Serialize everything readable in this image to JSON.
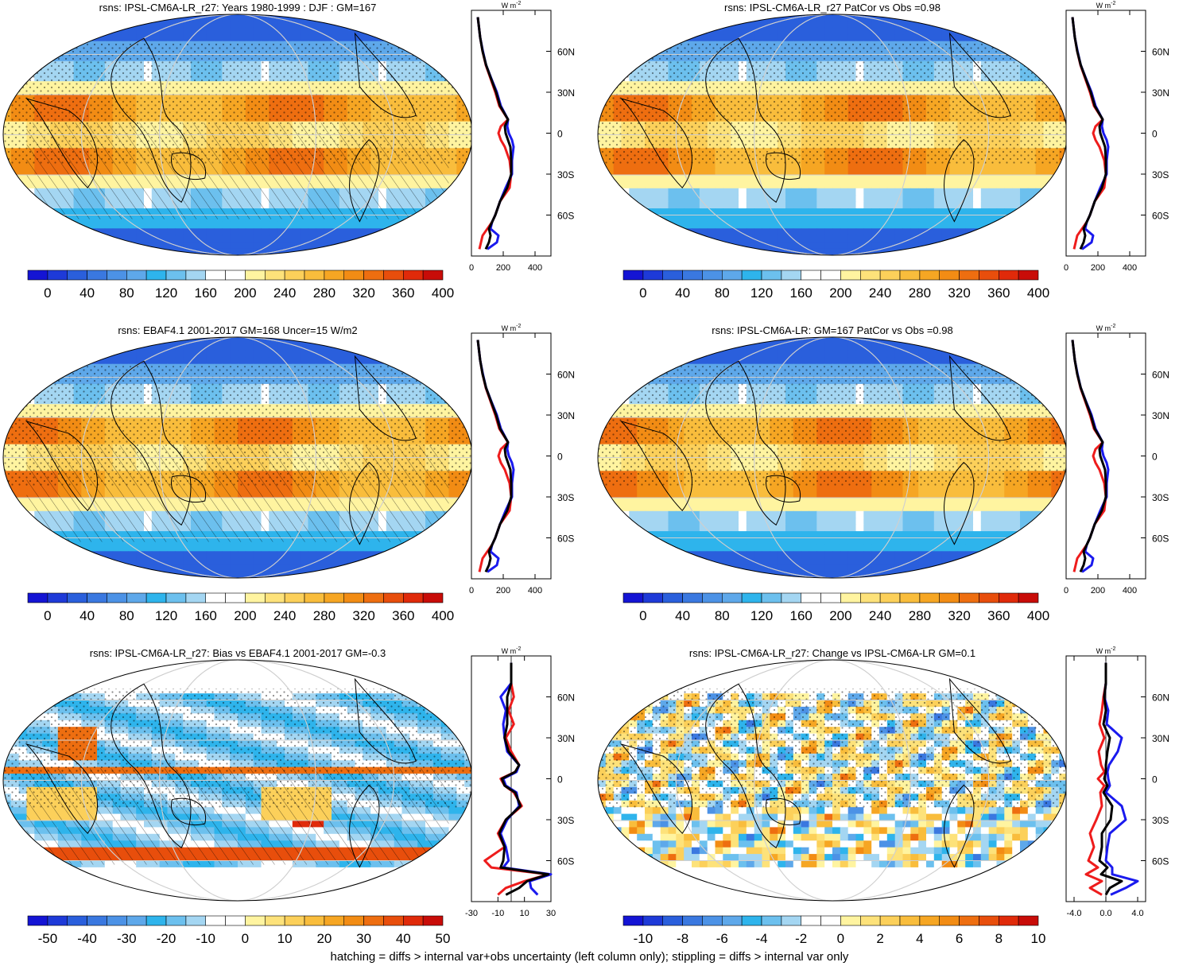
{
  "footnote": "hatching = diffs > internal var+obs uncertainty (left column only); stippling = diffs > internal var only",
  "colors": {
    "abs_scale": [
      "#1414d4",
      "#1e3ad8",
      "#2a5fdc",
      "#3a78e0",
      "#4c92e6",
      "#5ea8ea",
      "#2eb4ec",
      "#6cc0ee",
      "#a4d6f2",
      "#ffffff",
      "#ffffff",
      "#fff4a0",
      "#fde27a",
      "#fcd05a",
      "#f9bd3c",
      "#f6a623",
      "#f28c14",
      "#ee6e10",
      "#e84e0c",
      "#e02a0a",
      "#c80c08"
    ],
    "diff_scale": [
      "#1414d4",
      "#1e3ad8",
      "#2a5fdc",
      "#3a78e0",
      "#4c92e6",
      "#5ea8ea",
      "#2eb4ec",
      "#6cc0ee",
      "#a4d6f2",
      "#ffffff",
      "#ffffff",
      "#fff4a0",
      "#fde27a",
      "#fcd05a",
      "#f9bd3c",
      "#f6a623",
      "#f28c14",
      "#ee6e10",
      "#e84e0c",
      "#e02a0a",
      "#c80c08"
    ],
    "series_red": "#ee1c1c",
    "series_blue": "#1a1aee",
    "series_black": "#000000"
  },
  "chart_data": [
    {
      "id": "p1",
      "type": "heatmap",
      "title": "rsns: IPSL-CM6A-LR_r27: Years 1980-1999 : DJF : GM=167",
      "field": "abs",
      "hatch": true,
      "colorbar": {
        "ticks": [
          "0",
          "40",
          "80",
          "120",
          "160",
          "200",
          "240",
          "280",
          "320",
          "360",
          "400"
        ]
      },
      "profile": {
        "units_a": "W m",
        "units_b": "-2",
        "xlim": [
          0,
          500
        ],
        "xticks": [
          "0",
          "200",
          "400"
        ],
        "ylim": [
          -90,
          90
        ],
        "yticks": [
          "60N",
          "30N",
          "0",
          "30S",
          "60S"
        ],
        "zero_line": false,
        "lat": [
          85,
          80,
          70,
          60,
          50,
          40,
          30,
          20,
          10,
          5,
          0,
          -5,
          -10,
          -20,
          -30,
          -40,
          -50,
          -60,
          -65,
          -70,
          -75,
          -80,
          -85
        ],
        "series": [
          {
            "color": "series_red",
            "values": [
              40,
              45,
              55,
              70,
              90,
              120,
              150,
              175,
              230,
              185,
              170,
              185,
              210,
              240,
              250,
              240,
              180,
              150,
              130,
              100,
              70,
              60,
              50
            ]
          },
          {
            "color": "series_blue",
            "values": [
              40,
              45,
              55,
              72,
              92,
              125,
              160,
              185,
              230,
              225,
              235,
              255,
              265,
              255,
              255,
              215,
              180,
              150,
              130,
              120,
              170,
              160,
              100
            ]
          },
          {
            "color": "series_black",
            "values": [
              40,
              45,
              55,
              70,
              92,
              123,
              155,
              180,
              230,
              210,
              215,
              230,
              245,
              250,
              250,
              225,
              180,
              150,
              130,
              110,
              120,
              110,
              90
            ]
          }
        ]
      }
    },
    {
      "id": "p2",
      "type": "heatmap",
      "title": "rsns: IPSL-CM6A-LR_r27 PatCor vs Obs =0.98",
      "field": "abs",
      "hatch": false,
      "colorbar": {
        "ticks": [
          "0",
          "40",
          "80",
          "120",
          "160",
          "200",
          "240",
          "280",
          "320",
          "360",
          "400"
        ]
      },
      "profile": {
        "units_a": "W m",
        "units_b": "-2",
        "xlim": [
          0,
          500
        ],
        "xticks": [
          "0",
          "200",
          "400"
        ],
        "ylim": [
          -90,
          90
        ],
        "yticks": [
          "60N",
          "30N",
          "0",
          "30S",
          "60S"
        ],
        "zero_line": false,
        "lat": [
          85,
          80,
          70,
          60,
          50,
          40,
          30,
          20,
          10,
          5,
          0,
          -5,
          -10,
          -20,
          -30,
          -40,
          -50,
          -60,
          -65,
          -70,
          -75,
          -80,
          -85
        ],
        "series": [
          {
            "color": "series_red",
            "values": [
              40,
              45,
              55,
              70,
              90,
              120,
              150,
              175,
              230,
              185,
              170,
              185,
              210,
              240,
              250,
              240,
              180,
              150,
              130,
              100,
              70,
              60,
              50
            ]
          },
          {
            "color": "series_blue",
            "values": [
              40,
              45,
              55,
              72,
              92,
              125,
              160,
              185,
              230,
              225,
              235,
              255,
              265,
              255,
              255,
              215,
              180,
              150,
              130,
              120,
              170,
              160,
              100
            ]
          },
          {
            "color": "series_black",
            "values": [
              40,
              45,
              55,
              70,
              92,
              123,
              155,
              180,
              230,
              210,
              215,
              230,
              245,
              250,
              250,
              225,
              180,
              150,
              130,
              110,
              120,
              110,
              90
            ]
          }
        ]
      }
    },
    {
      "id": "p3",
      "type": "heatmap",
      "title": "rsns: EBAF4.1 2001-2017 GM=168 Uncer=15 W/m2",
      "field": "abs",
      "hatch": true,
      "colorbar": {
        "ticks": [
          "0",
          "40",
          "80",
          "120",
          "160",
          "200",
          "240",
          "280",
          "320",
          "360",
          "400"
        ]
      },
      "profile": {
        "units_a": "W m",
        "units_b": "-2",
        "xlim": [
          0,
          500
        ],
        "xticks": [
          "0",
          "200",
          "400"
        ],
        "ylim": [
          -90,
          90
        ],
        "yticks": [
          "60N",
          "30N",
          "0",
          "30S",
          "60S"
        ],
        "zero_line": false,
        "lat": [
          85,
          80,
          70,
          60,
          50,
          40,
          30,
          20,
          10,
          5,
          0,
          -5,
          -10,
          -20,
          -30,
          -40,
          -50,
          -60,
          -65,
          -70,
          -75,
          -80,
          -85
        ],
        "series": [
          {
            "color": "series_red",
            "values": [
              40,
              45,
              55,
              70,
              90,
              120,
              150,
              175,
              230,
              185,
              170,
              185,
              210,
              240,
              250,
              240,
              180,
              150,
              130,
              100,
              70,
              60,
              50
            ]
          },
          {
            "color": "series_blue",
            "values": [
              40,
              45,
              55,
              72,
              92,
              125,
              160,
              185,
              230,
              225,
              235,
              255,
              265,
              255,
              255,
              215,
              180,
              150,
              130,
              120,
              170,
              160,
              100
            ]
          },
          {
            "color": "series_black",
            "values": [
              40,
              45,
              55,
              70,
              92,
              123,
              155,
              180,
              230,
              210,
              215,
              230,
              245,
              250,
              250,
              225,
              180,
              150,
              130,
              110,
              120,
              110,
              90
            ]
          }
        ]
      }
    },
    {
      "id": "p4",
      "type": "heatmap",
      "title": "rsns: IPSL-CM6A-LR: GM=167 PatCor vs Obs =0.98",
      "field": "abs",
      "hatch": false,
      "colorbar": {
        "ticks": [
          "0",
          "40",
          "80",
          "120",
          "160",
          "200",
          "240",
          "280",
          "320",
          "360",
          "400"
        ]
      },
      "profile": {
        "units_a": "W m",
        "units_b": "-2",
        "xlim": [
          0,
          500
        ],
        "xticks": [
          "0",
          "200",
          "400"
        ],
        "ylim": [
          -90,
          90
        ],
        "yticks": [
          "60N",
          "30N",
          "0",
          "30S",
          "60S"
        ],
        "zero_line": false,
        "lat": [
          85,
          80,
          70,
          60,
          50,
          40,
          30,
          20,
          10,
          5,
          0,
          -5,
          -10,
          -20,
          -30,
          -40,
          -50,
          -60,
          -65,
          -70,
          -75,
          -80,
          -85
        ],
        "series": [
          {
            "color": "series_red",
            "values": [
              40,
              45,
              55,
              70,
              90,
              120,
              150,
              175,
              230,
              185,
              170,
              185,
              210,
              240,
              250,
              240,
              180,
              150,
              130,
              100,
              70,
              60,
              50
            ]
          },
          {
            "color": "series_blue",
            "values": [
              40,
              45,
              55,
              72,
              92,
              125,
              160,
              185,
              230,
              225,
              235,
              255,
              265,
              255,
              255,
              215,
              180,
              150,
              130,
              120,
              170,
              160,
              100
            ]
          },
          {
            "color": "series_black",
            "values": [
              40,
              45,
              55,
              70,
              92,
              123,
              155,
              180,
              230,
              210,
              215,
              230,
              245,
              250,
              250,
              225,
              180,
              150,
              130,
              110,
              120,
              110,
              90
            ]
          }
        ]
      }
    },
    {
      "id": "p5",
      "type": "heatmap",
      "title": "rsns: IPSL-CM6A-LR_r27: Bias vs EBAF4.1 2001-2017 GM=-0.3",
      "field": "bias",
      "hatch": true,
      "colorbar": {
        "ticks": [
          "-50",
          "-40",
          "-30",
          "-20",
          "-10",
          "0",
          "10",
          "20",
          "30",
          "40",
          "50"
        ]
      },
      "profile": {
        "units_a": "W m",
        "units_b": "-2",
        "xlim": [
          -30,
          30
        ],
        "xticks": [
          "-30",
          "-10",
          "10",
          "30"
        ],
        "ylim": [
          -90,
          90
        ],
        "yticks": [
          "60N",
          "30N",
          "0",
          "30S",
          "60S"
        ],
        "zero_line": true,
        "lat": [
          85,
          80,
          70,
          60,
          50,
          40,
          30,
          20,
          10,
          5,
          0,
          -5,
          -10,
          -20,
          -30,
          -40,
          -50,
          -60,
          -65,
          -70,
          -75,
          -80,
          -85
        ],
        "series": [
          {
            "color": "series_red",
            "values": [
              0,
              0,
              0,
              2,
              -2,
              2,
              -4,
              0,
              6,
              3,
              -8,
              -5,
              2,
              8,
              -4,
              -10,
              -5,
              -20,
              -15,
              28,
              10,
              -4,
              -10
            ]
          },
          {
            "color": "series_blue",
            "values": [
              0,
              0,
              0,
              -8,
              -4,
              -6,
              -5,
              -3,
              6,
              4,
              -6,
              -4,
              4,
              6,
              -3,
              -8,
              -4,
              -2,
              -6,
              30,
              14,
              15,
              20
            ]
          },
          {
            "color": "series_black",
            "values": [
              0,
              0,
              0,
              -3,
              -3,
              -3,
              -5,
              -2,
              6,
              3,
              -7,
              -5,
              3,
              7,
              -4,
              -9,
              -5,
              -6,
              -8,
              28,
              12,
              6,
              -4
            ]
          }
        ]
      }
    },
    {
      "id": "p6",
      "type": "heatmap",
      "title": "rsns: IPSL-CM6A-LR_r27: Change vs IPSL-CM6A-LR GM=0.1",
      "field": "change",
      "hatch": false,
      "colorbar": {
        "ticks": [
          "-10",
          "-8",
          "-6",
          "-4",
          "-2",
          "0",
          "2",
          "4",
          "6",
          "8",
          "10"
        ]
      },
      "profile": {
        "units_a": "W m",
        "units_b": "-2",
        "xlim": [
          -5,
          5
        ],
        "xticks": [
          "-4.0",
          "0.0",
          "4.0"
        ],
        "ylim": [
          -90,
          90
        ],
        "yticks": [
          "60N",
          "30N",
          "0",
          "30S",
          "60S"
        ],
        "zero_line": true,
        "lat": [
          85,
          80,
          70,
          60,
          50,
          40,
          30,
          20,
          10,
          5,
          0,
          -5,
          -10,
          -20,
          -30,
          -40,
          -50,
          -60,
          -65,
          -70,
          -75,
          -80,
          -85
        ],
        "series": [
          {
            "color": "series_red",
            "values": [
              0,
              0,
              0,
              -0.3,
              -0.5,
              -0.8,
              -0.2,
              -0.9,
              -0.6,
              -0.2,
              -1.0,
              -0.2,
              -0.7,
              -0.5,
              -1.2,
              -2.0,
              -1.5,
              -2.2,
              -1.0,
              -2.5,
              -0.5,
              -2.0,
              -0.5
            ]
          },
          {
            "color": "series_blue",
            "values": [
              0,
              0,
              0,
              -0.2,
              0.3,
              0.1,
              2.0,
              1.5,
              0.4,
              0.2,
              0.3,
              0.5,
              0.0,
              2.0,
              2.5,
              0.5,
              0.2,
              0.0,
              0.8,
              0.8,
              4.0,
              2.5,
              0.6
            ]
          },
          {
            "color": "series_black",
            "values": [
              0,
              0,
              0,
              -0.2,
              0.0,
              -0.3,
              0.5,
              0.2,
              0.0,
              0.0,
              -0.2,
              0.2,
              -0.3,
              0.8,
              0.6,
              -0.5,
              -0.5,
              -0.8,
              0.2,
              -0.6,
              2.0,
              0.5,
              0.0
            ]
          }
        ]
      }
    }
  ]
}
